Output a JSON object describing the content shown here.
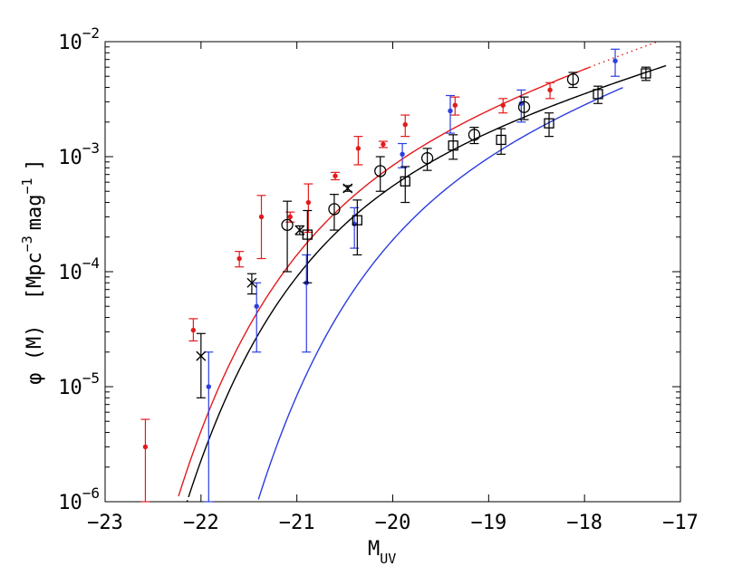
{
  "chart_data": {
    "type": "scatter",
    "title": "",
    "xlabel": {
      "main": "M",
      "sub": "UV"
    },
    "ylabel": {
      "phi": "φ",
      "arg": "(M)",
      "unit_open": "[Mpc",
      "exp1": "−3",
      "unit_mid": "mag",
      "exp2": "−1",
      "unit_close": "]"
    },
    "x_range": [
      -23,
      -17
    ],
    "y_range": [
      1e-06,
      0.01
    ],
    "y_scale": "log",
    "x_ticks": [
      "−23",
      "−22",
      "−21",
      "−20",
      "−19",
      "−18",
      "−17"
    ],
    "y_ticks": [
      {
        "base": "10",
        "exp": "−6"
      },
      {
        "base": "10",
        "exp": "−5"
      },
      {
        "base": "10",
        "exp": "−4"
      },
      {
        "base": "10",
        "exp": "−3"
      },
      {
        "base": "10",
        "exp": "−2"
      }
    ],
    "grid": false,
    "series": [
      {
        "marker": "dot",
        "color": "#e31a1c",
        "points": [
          {
            "x": -22.58,
            "y": 3e-06,
            "lo": 1e-06,
            "hi": 5.2e-06
          },
          {
            "x": -22.08,
            "y": 3.1e-05,
            "lo": 2.5e-05,
            "hi": 3.9e-05
          },
          {
            "x": -21.6,
            "y": 0.00013,
            "lo": 0.00011,
            "hi": 0.00015
          },
          {
            "x": -21.37,
            "y": 0.0003,
            "lo": 0.00013,
            "hi": 0.00046
          },
          {
            "x": -21.07,
            "y": 0.0003,
            "lo": 0.00027,
            "hi": 0.00033
          },
          {
            "x": -20.88,
            "y": 0.0004,
            "lo": 0.00022,
            "hi": 0.00058
          },
          {
            "x": -20.6,
            "y": 0.00068,
            "lo": 0.00063,
            "hi": 0.00073
          },
          {
            "x": -20.36,
            "y": 0.00118,
            "lo": 0.00085,
            "hi": 0.0015
          },
          {
            "x": -20.1,
            "y": 0.00128,
            "lo": 0.0012,
            "hi": 0.00136
          },
          {
            "x": -19.87,
            "y": 0.0019,
            "lo": 0.0015,
            "hi": 0.0023
          },
          {
            "x": -19.35,
            "y": 0.0028,
            "lo": 0.0023,
            "hi": 0.0033
          },
          {
            "x": -18.85,
            "y": 0.0028,
            "lo": 0.0024,
            "hi": 0.0032
          },
          {
            "x": -18.36,
            "y": 0.0038,
            "lo": 0.0032,
            "hi": 0.0044
          }
        ]
      },
      {
        "marker": "dot",
        "color": "#2b3de0",
        "points": [
          {
            "x": -21.92,
            "y": 1e-05,
            "lo": 1e-06,
            "hi": 2e-05
          },
          {
            "x": -21.42,
            "y": 5e-05,
            "lo": 2e-05,
            "hi": 8e-05
          },
          {
            "x": -20.9,
            "y": 8e-05,
            "lo": 2e-05,
            "hi": 0.00014
          },
          {
            "x": -20.4,
            "y": 0.00026,
            "lo": 0.00016,
            "hi": 0.00036
          },
          {
            "x": -19.9,
            "y": 0.00105,
            "lo": 0.0008,
            "hi": 0.0013
          },
          {
            "x": -19.4,
            "y": 0.0025,
            "lo": 0.0016,
            "hi": 0.0034
          },
          {
            "x": -18.66,
            "y": 0.0029,
            "lo": 0.002,
            "hi": 0.0038
          },
          {
            "x": -17.68,
            "y": 0.0068,
            "lo": 0.005,
            "hi": 0.0086
          }
        ]
      },
      {
        "marker": "circle",
        "color": "#000000",
        "points": [
          {
            "x": -21.1,
            "y": 0.000255,
            "lo": 0.0001,
            "hi": 0.00041
          },
          {
            "x": -20.61,
            "y": 0.00035,
            "lo": 0.00023,
            "hi": 0.00047
          },
          {
            "x": -20.13,
            "y": 0.00075,
            "lo": 0.0005,
            "hi": 0.001
          },
          {
            "x": -19.64,
            "y": 0.00097,
            "lo": 0.00076,
            "hi": 0.00118
          },
          {
            "x": -19.15,
            "y": 0.00155,
            "lo": 0.0013,
            "hi": 0.0018
          },
          {
            "x": -18.63,
            "y": 0.0027,
            "lo": 0.0021,
            "hi": 0.0033
          },
          {
            "x": -18.12,
            "y": 0.0047,
            "lo": 0.004,
            "hi": 0.0054
          }
        ]
      },
      {
        "marker": "square",
        "color": "#000000",
        "points": [
          {
            "x": -20.89,
            "y": 0.00021,
            "lo": 8e-05,
            "hi": 0.00034
          },
          {
            "x": -20.37,
            "y": 0.00028,
            "lo": 0.00014,
            "hi": 0.00042
          },
          {
            "x": -19.87,
            "y": 0.00061,
            "lo": 0.0004,
            "hi": 0.00082
          },
          {
            "x": -19.37,
            "y": 0.00125,
            "lo": 0.00095,
            "hi": 0.00155
          },
          {
            "x": -18.87,
            "y": 0.0014,
            "lo": 0.00105,
            "hi": 0.00175
          },
          {
            "x": -18.37,
            "y": 0.00195,
            "lo": 0.0015,
            "hi": 0.0024
          },
          {
            "x": -17.86,
            "y": 0.0035,
            "lo": 0.0029,
            "hi": 0.0041
          },
          {
            "x": -17.36,
            "y": 0.0053,
            "lo": 0.0046,
            "hi": 0.006
          }
        ]
      },
      {
        "marker": "cross",
        "color": "#000000",
        "points": [
          {
            "x": -22.0,
            "y": 1.85e-05,
            "lo": 8e-06,
            "hi": 2.9e-05
          },
          {
            "x": -21.47,
            "y": 8e-05,
            "lo": 6.4e-05,
            "hi": 9.6e-05
          },
          {
            "x": -20.97,
            "y": 0.00023,
            "lo": 0.00021,
            "hi": 0.00025
          },
          {
            "x": -20.47,
            "y": 0.00053,
            "lo": 0.0005,
            "hi": 0.00056
          }
        ]
      }
    ],
    "curves": [
      {
        "color": "#e31a1c",
        "style": "solid",
        "phi_star": 0.0016,
        "m_star": -20.3,
        "alpha": -1.7,
        "x_range": [
          -22.8,
          -17.95
        ]
      },
      {
        "color": "#e31a1c",
        "style": "dotted",
        "phi_star": 0.0016,
        "m_star": -20.3,
        "alpha": -1.7,
        "x_range": [
          -17.95,
          -17.0
        ]
      },
      {
        "color": "#2b3de0",
        "style": "solid",
        "phi_star": 0.00146,
        "m_star": -19.48,
        "alpha": -1.73,
        "x_range": [
          -22.05,
          -17.6
        ]
      },
      {
        "color": "#000000",
        "style": "solid",
        "phi_star": 0.0012,
        "m_star": -20.22,
        "alpha": -1.63,
        "x_range": [
          -22.13,
          -17.15
        ]
      },
      {
        "color": "#000000",
        "style": "dotted",
        "phi_star": 0.0012,
        "m_star": -20.22,
        "alpha": -1.63,
        "x_range": [
          -22.45,
          -22.13
        ]
      }
    ]
  }
}
